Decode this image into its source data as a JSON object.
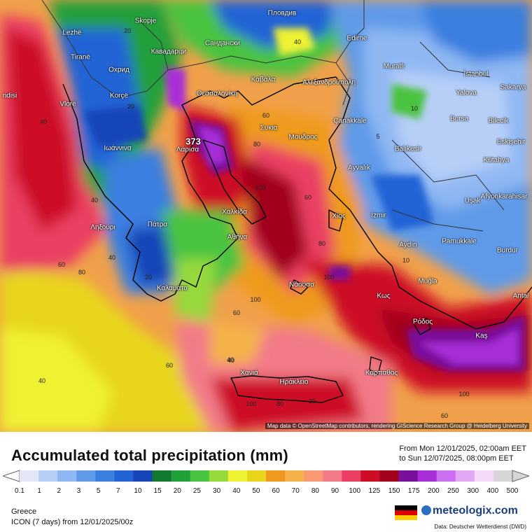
{
  "title": "Accumulated total precipitation (mm)",
  "range": {
    "line1": "From Mon 12/01/2025, 02:00am EET",
    "line2": "to Sun 12/07/2025, 08:00pm EET"
  },
  "region": "Greece",
  "model": "ICON (7 days)  from  12/01/2025/00z",
  "brand": "meteologix.com",
  "source": "Data: Deutscher Wetterdienst (DWD)",
  "attribution": "Map data © OpenStreetMap contributors, rendering GIScience Research Group @ Heidelberg University",
  "legend": {
    "labels": [
      "0.1",
      "1",
      "2",
      "3",
      "5",
      "7",
      "10",
      "15",
      "20",
      "25",
      "30",
      "40",
      "50",
      "60",
      "70",
      "80",
      "90",
      "100",
      "125",
      "150",
      "175",
      "200",
      "250",
      "300",
      "400",
      "500"
    ],
    "colors": [
      "#e3e6f5",
      "#b7cff7",
      "#8fb8f3",
      "#5e9ae8",
      "#3b7fe0",
      "#2363d6",
      "#1645b8",
      "#127a2e",
      "#22a03a",
      "#49c33f",
      "#95d93d",
      "#eef232",
      "#e8d51c",
      "#ef9a1f",
      "#f4b248",
      "#f79a72",
      "#f27a88",
      "#ea3f63",
      "#cd0d26",
      "#a1001c",
      "#7a0f9c",
      "#a82fd8",
      "#cb6ff0",
      "#e3a8f5",
      "#f4dcf8",
      "#d6d6d6"
    ]
  },
  "places": [
    {
      "name": "Lezhë"
    },
    {
      "name": "Skopje"
    },
    {
      "name": "Пловдив"
    },
    {
      "name": "Tiranë"
    },
    {
      "name": "Кавадарци"
    },
    {
      "name": "Сандански"
    },
    {
      "name": "Edirne"
    },
    {
      "name": "Охрид"
    },
    {
      "name": "Muratlı"
    },
    {
      "name": "İstanbul"
    },
    {
      "name": "Korçë"
    },
    {
      "name": "Θεσσαλονίκη"
    },
    {
      "name": "Καβάλα"
    },
    {
      "name": "Αλεξανδρούπολη"
    },
    {
      "name": "Yalova"
    },
    {
      "name": "Sakarya"
    },
    {
      "name": "Vlorë"
    },
    {
      "name": "Συκιά"
    },
    {
      "name": "Bursa"
    },
    {
      "name": "Bilecik"
    },
    {
      "name": "Ιωάννινα"
    },
    {
      "name": "Λάρισα"
    },
    {
      "name": "Μούδρος"
    },
    {
      "name": "Çanakkale"
    },
    {
      "name": "Balıkesir"
    },
    {
      "name": "Eskişehir"
    },
    {
      "name": "Kütahya"
    },
    {
      "name": "Ayvalık"
    },
    {
      "name": "Uşak"
    },
    {
      "name": "Afyonkarahisar"
    },
    {
      "name": "Χαλκίδα"
    },
    {
      "name": "Xίος"
    },
    {
      "name": "İzmir"
    },
    {
      "name": "Ληξούρι"
    },
    {
      "name": "Πάτρα"
    },
    {
      "name": "Αθήνα"
    },
    {
      "name": "Aydın"
    },
    {
      "name": "Pamukkale"
    },
    {
      "name": "Burdur"
    },
    {
      "name": "Καλαμάτα"
    },
    {
      "name": "Νάουσα"
    },
    {
      "name": "Muğla"
    },
    {
      "name": "Antal"
    },
    {
      "name": "Κως"
    },
    {
      "name": "Ρόδος"
    },
    {
      "name": "Kaş"
    },
    {
      "name": "Χανιά"
    },
    {
      "name": "Ηράκλειο"
    },
    {
      "name": "Κάρπαθος"
    },
    {
      "name": "ndisi"
    }
  ],
  "contours": [
    "20",
    "40",
    "60",
    "80",
    "100",
    "40",
    "60",
    "80",
    "100",
    "40",
    "20",
    "60",
    "80",
    "100",
    "40",
    "5",
    "10",
    "20",
    "40",
    "60",
    "100",
    "80",
    "60",
    "40",
    "20",
    "10",
    "100",
    "60",
    "40"
  ],
  "max_value": "373"
}
